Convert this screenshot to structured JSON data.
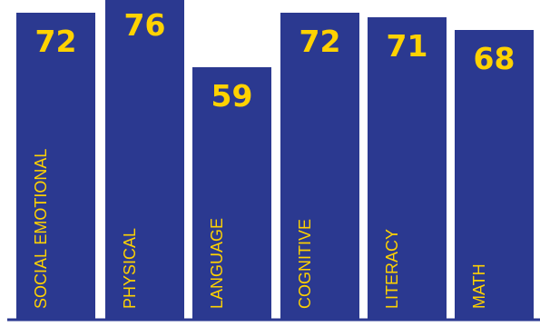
{
  "chart_data": {
    "type": "bar",
    "categories": [
      "SOCIAL EMOTIONAL",
      "PHYSICAL",
      "LANGUAGE",
      "COGNITIVE",
      "LITERACY",
      "MATH"
    ],
    "values": [
      72,
      76,
      59,
      72,
      71,
      68
    ],
    "value_labels": [
      "72",
      "76",
      "59",
      "72",
      "71",
      "68"
    ],
    "title": "",
    "xlabel": "",
    "ylabel": "",
    "ylim": [
      0,
      80
    ],
    "grid": false,
    "legend": "none",
    "colors": {
      "bar": "#2b3990",
      "value_text": "#ffd200",
      "category_text": "#ffd200",
      "baseline": "#2b3990"
    }
  }
}
